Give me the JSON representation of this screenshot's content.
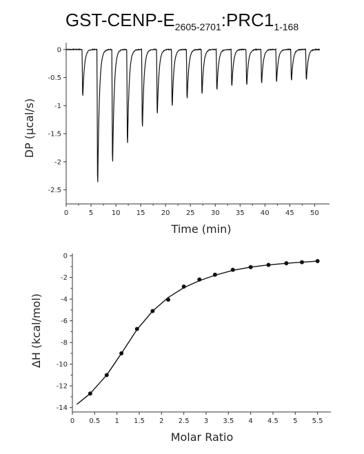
{
  "title": {
    "main": "GST-CENP-E",
    "sub1": "2605-2701",
    "sep": ":PRC1",
    "sub2": "1-168"
  },
  "chart_data": [
    {
      "type": "line",
      "name": "thermogram",
      "xlabel": "Time (min)",
      "ylabel": "DP (μcal/s)",
      "xlim": [
        0,
        53
      ],
      "ylim": [
        -2.75,
        0.12
      ],
      "xticks": [
        0,
        5,
        10,
        15,
        20,
        25,
        30,
        35,
        40,
        45,
        50
      ],
      "xtick_labels": [
        "0",
        "5",
        "10",
        "15",
        "20",
        "25",
        "30",
        "35",
        "40",
        "45",
        "50"
      ],
      "yticks": [
        0,
        -0.5,
        -1,
        -1.5,
        -2,
        -2.5
      ],
      "ytick_labels": [
        "0",
        "-0.5",
        "-1",
        "-1.5",
        "-2",
        "-2.5"
      ],
      "baseline": 0,
      "baseline_end": 51,
      "peaks": [
        {
          "t": 3.2,
          "depth": -0.92
        },
        {
          "t": 6.2,
          "depth": -2.67
        },
        {
          "t": 9.2,
          "depth": -2.25
        },
        {
          "t": 12.2,
          "depth": -1.87
        },
        {
          "t": 15.2,
          "depth": -1.55
        },
        {
          "t": 18.2,
          "depth": -1.28
        },
        {
          "t": 21.2,
          "depth": -1.12
        },
        {
          "t": 24.2,
          "depth": -0.97
        },
        {
          "t": 27.2,
          "depth": -0.88
        },
        {
          "t": 30.2,
          "depth": -0.8
        },
        {
          "t": 33.2,
          "depth": -0.73
        },
        {
          "t": 36.2,
          "depth": -0.7
        },
        {
          "t": 39.2,
          "depth": -0.67
        },
        {
          "t": 42.2,
          "depth": -0.64
        },
        {
          "t": 45.2,
          "depth": -0.62
        },
        {
          "t": 48.2,
          "depth": -0.6
        }
      ],
      "grid": false
    },
    {
      "type": "scatter",
      "name": "binding-isotherm",
      "xlabel": "Molar Ratio",
      "ylabel": "ΔH (kcal/mol)",
      "xlim": [
        0,
        5.8
      ],
      "ylim": [
        -14.4,
        0.2
      ],
      "xticks": [
        0,
        0.5,
        1,
        1.5,
        2,
        2.5,
        3,
        3.5,
        4,
        4.5,
        5,
        5.5
      ],
      "xtick_labels": [
        "0",
        "0.5",
        "1",
        "1.5",
        "2",
        "2.5",
        "3",
        "3.5",
        "4",
        "4.5",
        "5",
        "5.5"
      ],
      "yticks": [
        0,
        -2,
        -4,
        -6,
        -8,
        -10,
        -12,
        -14
      ],
      "ytick_labels": [
        "0",
        "-2",
        "-4",
        "-6",
        "-8",
        "-10",
        "-12",
        "-14"
      ],
      "points": {
        "x": [
          0.4,
          0.77,
          1.1,
          1.45,
          1.8,
          2.15,
          2.5,
          2.85,
          3.2,
          3.6,
          4.0,
          4.4,
          4.8,
          5.15,
          5.5
        ],
        "y": [
          -12.7,
          -11.0,
          -9.0,
          -6.75,
          -5.1,
          -4.05,
          -2.85,
          -2.2,
          -1.75,
          -1.3,
          -1.05,
          -0.85,
          -0.7,
          -0.6,
          -0.5
        ]
      },
      "fit": {
        "x": [
          0.1,
          0.4,
          0.77,
          1.1,
          1.45,
          1.8,
          2.15,
          2.5,
          2.85,
          3.2,
          3.6,
          4.0,
          4.4,
          4.8,
          5.15,
          5.5
        ],
        "y": [
          -13.7,
          -12.7,
          -11.0,
          -9.0,
          -6.8,
          -5.1,
          -3.85,
          -2.95,
          -2.3,
          -1.8,
          -1.35,
          -1.05,
          -0.85,
          -0.7,
          -0.6,
          -0.5
        ]
      },
      "grid": false
    }
  ]
}
